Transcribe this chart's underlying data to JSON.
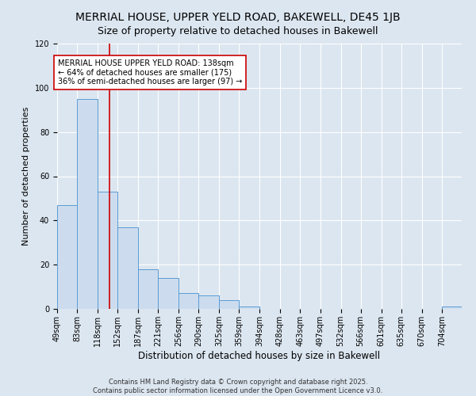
{
  "title": "MERRIAL HOUSE, UPPER YELD ROAD, BAKEWELL, DE45 1JB",
  "subtitle": "Size of property relative to detached houses in Bakewell",
  "xlabel": "Distribution of detached houses by size in Bakewell",
  "ylabel": "Number of detached properties",
  "bar_edges": [
    49,
    83,
    118,
    152,
    187,
    221,
    256,
    290,
    325,
    359,
    394,
    428,
    463,
    497,
    532,
    566,
    601,
    635,
    670,
    704,
    738
  ],
  "bar_heights": [
    47,
    95,
    53,
    37,
    18,
    14,
    7,
    6,
    4,
    1,
    0,
    0,
    0,
    0,
    0,
    0,
    0,
    0,
    0,
    1
  ],
  "bar_color": "#ccdcee",
  "bar_edge_color": "#5b9bd5",
  "bar_linewidth": 0.7,
  "vline_x": 138,
  "vline_color": "#cc0000",
  "vline_linewidth": 1.2,
  "ylim": [
    0,
    120
  ],
  "yticks": [
    0,
    20,
    40,
    60,
    80,
    100,
    120
  ],
  "annotation_text": "MERRIAL HOUSE UPPER YELD ROAD: 138sqm\n← 64% of detached houses are smaller (175)\n36% of semi-detached houses are larger (97) →",
  "annotation_box_color": "#ffffff",
  "annotation_box_edge_color": "#cc0000",
  "annotation_fontsize": 7,
  "title_fontsize": 10,
  "subtitle_fontsize": 9,
  "xlabel_fontsize": 8.5,
  "ylabel_fontsize": 8,
  "tick_fontsize": 7,
  "bg_color": "#dce6f0",
  "grid_color": "#ffffff",
  "footer_line1": "Contains HM Land Registry data © Crown copyright and database right 2025.",
  "footer_line2": "Contains public sector information licensed under the Open Government Licence v3.0.",
  "footer_fontsize": 6
}
